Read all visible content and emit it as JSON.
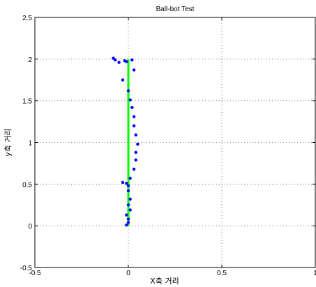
{
  "chart_data": {
    "type": "scatter",
    "title": "Ball-bot Test",
    "xlabel": "X축 거리",
    "ylabel": "y축 거리",
    "xlim": [
      -0.5,
      1
    ],
    "ylim": [
      -0.5,
      2.5
    ],
    "xticks": [
      -0.5,
      0,
      0.5,
      1
    ],
    "yticks": [
      -0.5,
      0,
      0.5,
      1,
      1.5,
      2,
      2.5
    ],
    "xtick_labels": [
      "-0.5",
      "0",
      "0.5",
      "1"
    ],
    "ytick_labels": [
      "-0.5",
      "0",
      "0.5",
      "1",
      "1.5",
      "2",
      "2.5"
    ],
    "grid": true,
    "grid_style": "dotted",
    "series": [
      {
        "kind": "line",
        "color": "#00ff00",
        "x": [
          0,
          0
        ],
        "y": [
          0,
          2
        ]
      },
      {
        "kind": "points",
        "color": "#0000ff",
        "x": [
          -0.08,
          -0.07,
          -0.05,
          -0.02,
          -0.01,
          0.02,
          0.03,
          -0.03,
          0.0,
          0.01,
          0.02,
          0.03,
          0.03,
          0.04,
          0.05,
          0.04,
          0.04,
          0.03,
          0.01,
          0.0,
          -0.01,
          -0.03,
          0.0,
          0.01,
          0.0,
          0.01,
          -0.01,
          0.0,
          0.0,
          -0.01
        ],
        "y": [
          2.01,
          1.99,
          1.96,
          1.98,
          1.97,
          1.99,
          1.87,
          1.75,
          1.62,
          1.51,
          1.42,
          1.31,
          1.2,
          1.09,
          0.98,
          0.88,
          0.79,
          0.68,
          0.57,
          0.48,
          0.51,
          0.52,
          0.42,
          0.32,
          0.25,
          0.19,
          0.13,
          0.08,
          0.04,
          0.01
        ]
      }
    ]
  }
}
